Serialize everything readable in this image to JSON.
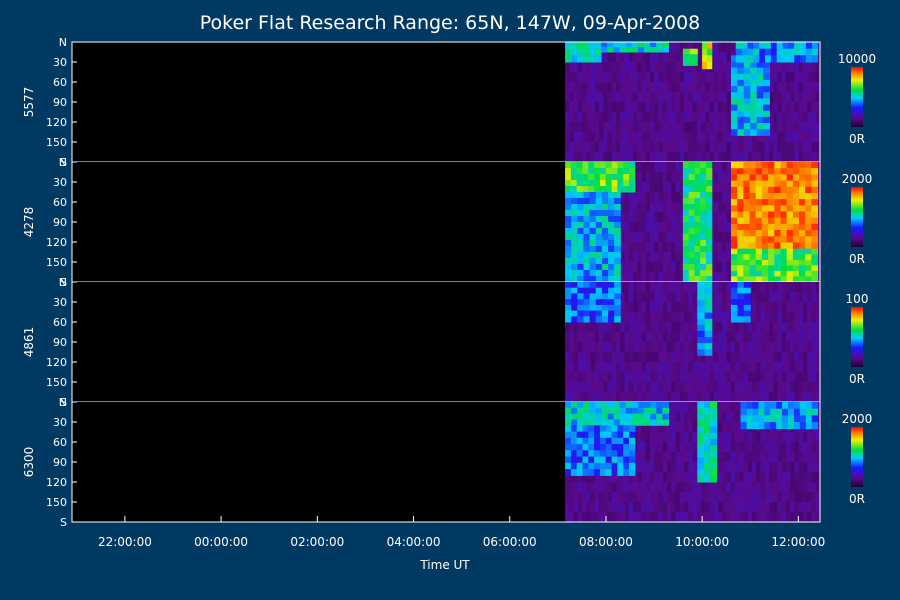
{
  "chart_data": {
    "type": "heatmap",
    "title": "Poker Flat Research Range: 65N, 147W, 09-Apr-2008",
    "xlabel": "Time UT",
    "x_range_hours_ut": [
      20.9,
      36.45
    ],
    "x_ticks": [
      {
        "hour": 22,
        "label": "22:00:00"
      },
      {
        "hour": 24,
        "label": "00:00:00"
      },
      {
        "hour": 26,
        "label": "02:00:00"
      },
      {
        "hour": 28,
        "label": "04:00:00"
      },
      {
        "hour": 30,
        "label": "06:00:00"
      },
      {
        "hour": 32,
        "label": "08:00:00"
      },
      {
        "hour": 34,
        "label": "10:00:00"
      },
      {
        "hour": 36,
        "label": "12:00:00"
      }
    ],
    "y_ticks": [
      "N",
      "30",
      "60",
      "90",
      "120",
      "150",
      "S"
    ],
    "y_tick_values": [
      0,
      30,
      60,
      90,
      120,
      150,
      180
    ],
    "data_start_hour": 31.15,
    "panels": [
      {
        "wavelength": "5577",
        "colorbar_max": "10000",
        "colorbar_min": "0R",
        "events": [
          {
            "t0": 31.15,
            "t1": 31.9,
            "z0": 0,
            "z1": 30,
            "level": 0.5
          },
          {
            "t0": 31.9,
            "t1": 33.3,
            "z0": 0,
            "z1": 15,
            "level": 0.45
          },
          {
            "t0": 33.6,
            "t1": 33.9,
            "z0": 10,
            "z1": 35,
            "level": 0.6
          },
          {
            "t0": 34.0,
            "t1": 34.2,
            "z0": 0,
            "z1": 40,
            "level": 0.7
          },
          {
            "t0": 34.6,
            "t1": 35.4,
            "z0": 20,
            "z1": 140,
            "level": 0.42
          },
          {
            "t0": 34.7,
            "t1": 36.4,
            "z0": 0,
            "z1": 30,
            "level": 0.38
          }
        ]
      },
      {
        "wavelength": "4278",
        "colorbar_max": "2000",
        "colorbar_min": "0R",
        "events": [
          {
            "t0": 31.15,
            "t1": 32.6,
            "z0": 0,
            "z1": 45,
            "level": 0.6
          },
          {
            "t0": 31.15,
            "t1": 32.3,
            "z0": 45,
            "z1": 180,
            "level": 0.42
          },
          {
            "t0": 33.6,
            "t1": 34.2,
            "z0": 0,
            "z1": 180,
            "level": 0.55
          },
          {
            "t0": 34.6,
            "t1": 36.4,
            "z0": 0,
            "z1": 130,
            "level": 0.85
          },
          {
            "t0": 34.6,
            "t1": 36.4,
            "z0": 130,
            "z1": 180,
            "level": 0.6
          }
        ]
      },
      {
        "wavelength": "4861",
        "colorbar_max": "100",
        "colorbar_min": "0R",
        "events": [
          {
            "t0": 31.15,
            "t1": 32.3,
            "z0": 0,
            "z1": 60,
            "level": 0.35
          },
          {
            "t0": 33.9,
            "t1": 34.2,
            "z0": 0,
            "z1": 110,
            "level": 0.4
          },
          {
            "t0": 34.6,
            "t1": 35.0,
            "z0": 0,
            "z1": 60,
            "level": 0.35
          }
        ]
      },
      {
        "wavelength": "6300",
        "colorbar_max": "2000",
        "colorbar_min": "0R",
        "events": [
          {
            "t0": 31.15,
            "t1": 33.3,
            "z0": 0,
            "z1": 35,
            "level": 0.45
          },
          {
            "t0": 31.15,
            "t1": 32.6,
            "z0": 35,
            "z1": 110,
            "level": 0.35
          },
          {
            "t0": 33.9,
            "t1": 34.3,
            "z0": 0,
            "z1": 120,
            "level": 0.5
          },
          {
            "t0": 34.8,
            "t1": 36.4,
            "z0": 0,
            "z1": 40,
            "level": 0.4
          }
        ]
      }
    ]
  }
}
